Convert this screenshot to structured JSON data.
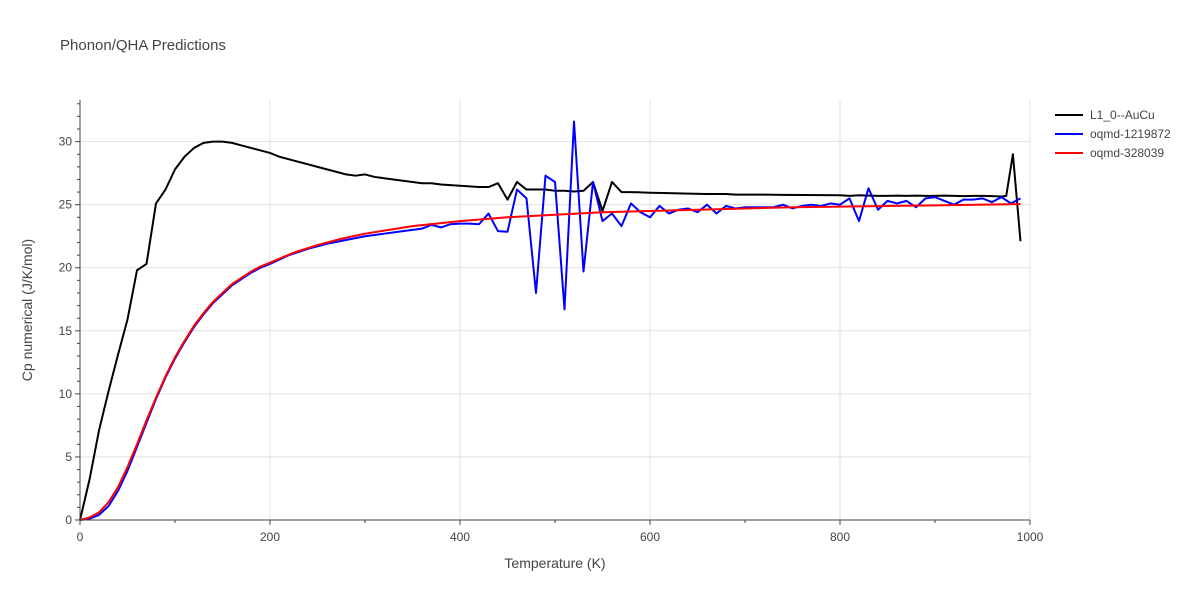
{
  "chart_data": {
    "type": "line",
    "title": "Phonon/QHA Predictions",
    "xlabel": "Temperature (K)",
    "ylabel": "Cp numerical (J/K/mol)",
    "xlim": [
      0,
      1000
    ],
    "ylim": [
      0,
      33.3
    ],
    "xticks": [
      0,
      200,
      400,
      600,
      800,
      1000
    ],
    "yticks": [
      0,
      5,
      10,
      15,
      20,
      25,
      30
    ],
    "grid": true,
    "legend_position": "top-right",
    "series": [
      {
        "name": "L1_0--AuCu",
        "color": "#000000",
        "x": [
          0,
          10,
          20,
          30,
          40,
          50,
          60,
          70,
          80,
          90,
          100,
          110,
          120,
          130,
          140,
          150,
          160,
          170,
          180,
          190,
          200,
          210,
          220,
          230,
          240,
          250,
          260,
          270,
          280,
          290,
          300,
          310,
          320,
          330,
          340,
          350,
          360,
          370,
          380,
          390,
          400,
          410,
          420,
          430,
          440,
          450,
          460,
          470,
          480,
          490,
          500,
          510,
          520,
          530,
          540,
          550,
          560,
          570,
          580,
          590,
          600,
          620,
          640,
          660,
          680,
          690,
          700,
          720,
          740,
          760,
          780,
          800,
          810,
          820,
          830,
          840,
          850,
          860,
          870,
          880,
          890,
          900,
          910,
          920,
          930,
          940,
          950,
          960,
          970,
          975,
          982,
          990
        ],
        "y": [
          0,
          3.2,
          7.1,
          10.2,
          13.1,
          15.9,
          19.8,
          20.3,
          25.1,
          26.2,
          27.8,
          28.8,
          29.5,
          29.9,
          30.0,
          30.0,
          29.9,
          29.7,
          29.5,
          29.3,
          29.1,
          28.8,
          28.6,
          28.4,
          28.2,
          28.0,
          27.8,
          27.6,
          27.4,
          27.3,
          27.4,
          27.2,
          27.1,
          27.0,
          26.9,
          26.8,
          26.7,
          26.7,
          26.6,
          26.55,
          26.5,
          26.45,
          26.4,
          26.4,
          26.7,
          25.4,
          26.8,
          26.2,
          26.2,
          26.2,
          26.1,
          26.1,
          26.05,
          26.1,
          26.8,
          24.5,
          26.8,
          26.0,
          26.0,
          25.98,
          25.95,
          25.92,
          25.88,
          25.85,
          25.85,
          25.8,
          25.8,
          25.8,
          25.78,
          25.77,
          25.76,
          25.75,
          25.7,
          25.75,
          25.72,
          25.7,
          25.7,
          25.72,
          25.7,
          25.72,
          25.7,
          25.7,
          25.72,
          25.7,
          25.68,
          25.7,
          25.7,
          25.68,
          25.65,
          25.7,
          29.0,
          22.1
        ]
      },
      {
        "name": "oqmd-1219872",
        "color": "#0000ff",
        "x": [
          0,
          10,
          20,
          30,
          40,
          50,
          60,
          70,
          80,
          90,
          100,
          110,
          120,
          130,
          140,
          150,
          160,
          170,
          180,
          190,
          200,
          220,
          240,
          260,
          280,
          300,
          320,
          340,
          360,
          370,
          380,
          390,
          400,
          410,
          420,
          430,
          440,
          450,
          460,
          470,
          480,
          490,
          500,
          510,
          520,
          530,
          540,
          550,
          560,
          570,
          580,
          590,
          600,
          610,
          620,
          630,
          640,
          650,
          660,
          670,
          680,
          690,
          700,
          710,
          720,
          730,
          740,
          750,
          760,
          770,
          780,
          790,
          800,
          810,
          820,
          830,
          840,
          850,
          860,
          870,
          880,
          890,
          900,
          910,
          920,
          930,
          940,
          950,
          960,
          970,
          980,
          990
        ],
        "y": [
          0,
          0.1,
          0.4,
          1.1,
          2.3,
          3.9,
          5.8,
          7.7,
          9.6,
          11.3,
          12.8,
          14.1,
          15.3,
          16.3,
          17.2,
          17.9,
          18.6,
          19.1,
          19.6,
          20.0,
          20.3,
          21.0,
          21.5,
          21.9,
          22.2,
          22.5,
          22.7,
          22.9,
          23.1,
          23.4,
          23.2,
          23.45,
          23.5,
          23.5,
          23.45,
          24.3,
          22.9,
          22.85,
          26.2,
          25.5,
          18.0,
          27.3,
          26.8,
          16.7,
          31.6,
          19.7,
          26.8,
          23.7,
          24.3,
          23.3,
          25.1,
          24.4,
          24.0,
          24.9,
          24.3,
          24.6,
          24.7,
          24.4,
          25.0,
          24.3,
          24.9,
          24.7,
          24.8,
          24.8,
          24.8,
          24.8,
          25.0,
          24.7,
          24.9,
          25.0,
          24.9,
          25.1,
          25.0,
          25.5,
          23.7,
          26.3,
          24.6,
          25.3,
          25.1,
          25.3,
          24.8,
          25.5,
          25.6,
          25.3,
          25.0,
          25.4,
          25.4,
          25.5,
          25.2,
          25.6,
          25.1,
          25.5
        ]
      },
      {
        "name": "oqmd-328039",
        "color": "#ff0000",
        "x": [
          0,
          10,
          20,
          30,
          40,
          50,
          60,
          70,
          80,
          90,
          100,
          110,
          120,
          130,
          140,
          150,
          160,
          170,
          180,
          190,
          200,
          225,
          250,
          275,
          300,
          350,
          400,
          450,
          500,
          550,
          600,
          650,
          700,
          750,
          800,
          850,
          900,
          950,
          990
        ],
        "y": [
          0,
          0.2,
          0.6,
          1.4,
          2.6,
          4.2,
          6.0,
          7.9,
          9.7,
          11.4,
          12.9,
          14.2,
          15.4,
          16.4,
          17.3,
          18.0,
          18.7,
          19.2,
          19.7,
          20.1,
          20.4,
          21.2,
          21.8,
          22.3,
          22.7,
          23.3,
          23.7,
          24.0,
          24.2,
          24.4,
          24.5,
          24.6,
          24.7,
          24.8,
          24.85,
          24.9,
          24.95,
          25.0,
          25.05
        ]
      }
    ]
  }
}
